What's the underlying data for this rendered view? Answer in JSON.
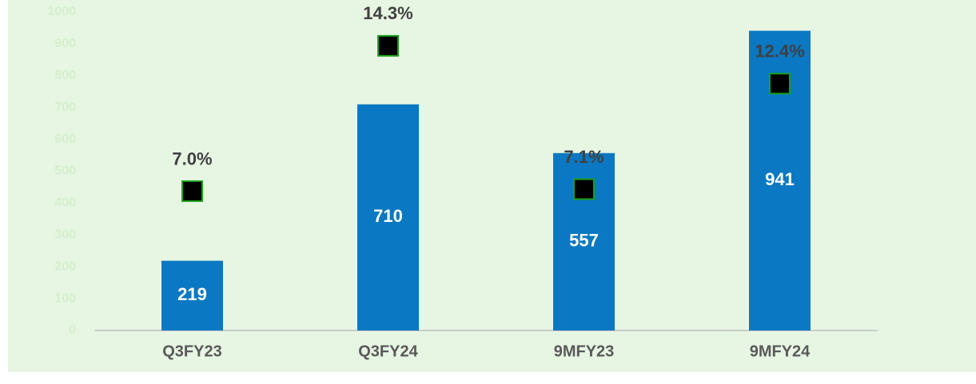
{
  "chart_data": {
    "type": "bar",
    "categories": [
      "Q3FY23",
      "Q3FY24",
      "9MFY23",
      "9MFY24"
    ],
    "series": [
      {
        "type": "bar",
        "color": "#0a78c2",
        "values": [
          219,
          710,
          557,
          941
        ]
      },
      {
        "type": "scatter",
        "axis": "y2",
        "color": "#000000",
        "values": [
          7.0,
          14.3,
          7.1,
          12.4
        ],
        "value_labels": [
          "7.0%",
          "14.3%",
          "7.1%",
          "12.4%"
        ]
      }
    ],
    "ylim": [
      0,
      1000
    ],
    "yticks": [
      0,
      100,
      200,
      300,
      400,
      500,
      600,
      700,
      800,
      900,
      1000
    ],
    "y2lim": [
      0,
      16
    ],
    "grid": false
  }
}
